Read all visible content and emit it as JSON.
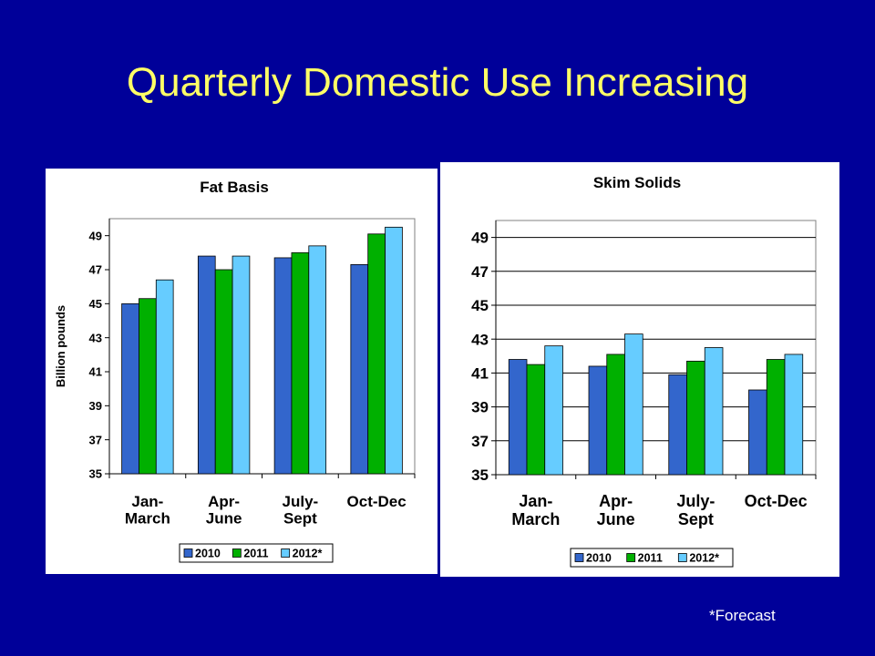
{
  "slide": {
    "title": "Quarterly Domestic Use Increasing",
    "footnote": "*Forecast"
  },
  "chart_data": [
    {
      "type": "bar",
      "title": "Fat Basis",
      "xlabel": "",
      "ylabel": "Billion pounds",
      "ylim": [
        35,
        50
      ],
      "yticks": [
        35,
        37,
        39,
        41,
        43,
        45,
        47,
        49
      ],
      "grid": false,
      "legend": "bottom",
      "categories": [
        [
          "Jan-",
          "March"
        ],
        [
          "Apr-",
          "June"
        ],
        [
          "July-",
          "Sept"
        ],
        [
          "Oct-Dec"
        ]
      ],
      "series": [
        {
          "name": "2010",
          "color": "#3366CC",
          "values": [
            45.0,
            47.8,
            47.7,
            47.3
          ]
        },
        {
          "name": "2011",
          "color": "#00B000",
          "values": [
            45.3,
            47.0,
            48.0,
            49.1
          ]
        },
        {
          "name": "2012*",
          "color": "#66CCFF",
          "values": [
            46.4,
            47.8,
            48.4,
            49.5
          ]
        }
      ]
    },
    {
      "type": "bar",
      "title": "Skim Solids",
      "xlabel": "",
      "ylabel": "",
      "ylim": [
        35,
        50
      ],
      "yticks": [
        35,
        37,
        39,
        41,
        43,
        45,
        47,
        49
      ],
      "grid": true,
      "legend": "bottom",
      "categories": [
        [
          "Jan-",
          "March"
        ],
        [
          "Apr-",
          "June"
        ],
        [
          "July-",
          "Sept"
        ],
        [
          "Oct-Dec"
        ]
      ],
      "series": [
        {
          "name": "2010",
          "color": "#3366CC",
          "values": [
            41.8,
            41.4,
            40.9,
            40.0
          ]
        },
        {
          "name": "2011",
          "color": "#00B000",
          "values": [
            41.5,
            42.1,
            41.7,
            41.8
          ]
        },
        {
          "name": "2012*",
          "color": "#66CCFF",
          "values": [
            42.6,
            43.3,
            42.5,
            42.1
          ]
        }
      ]
    }
  ]
}
